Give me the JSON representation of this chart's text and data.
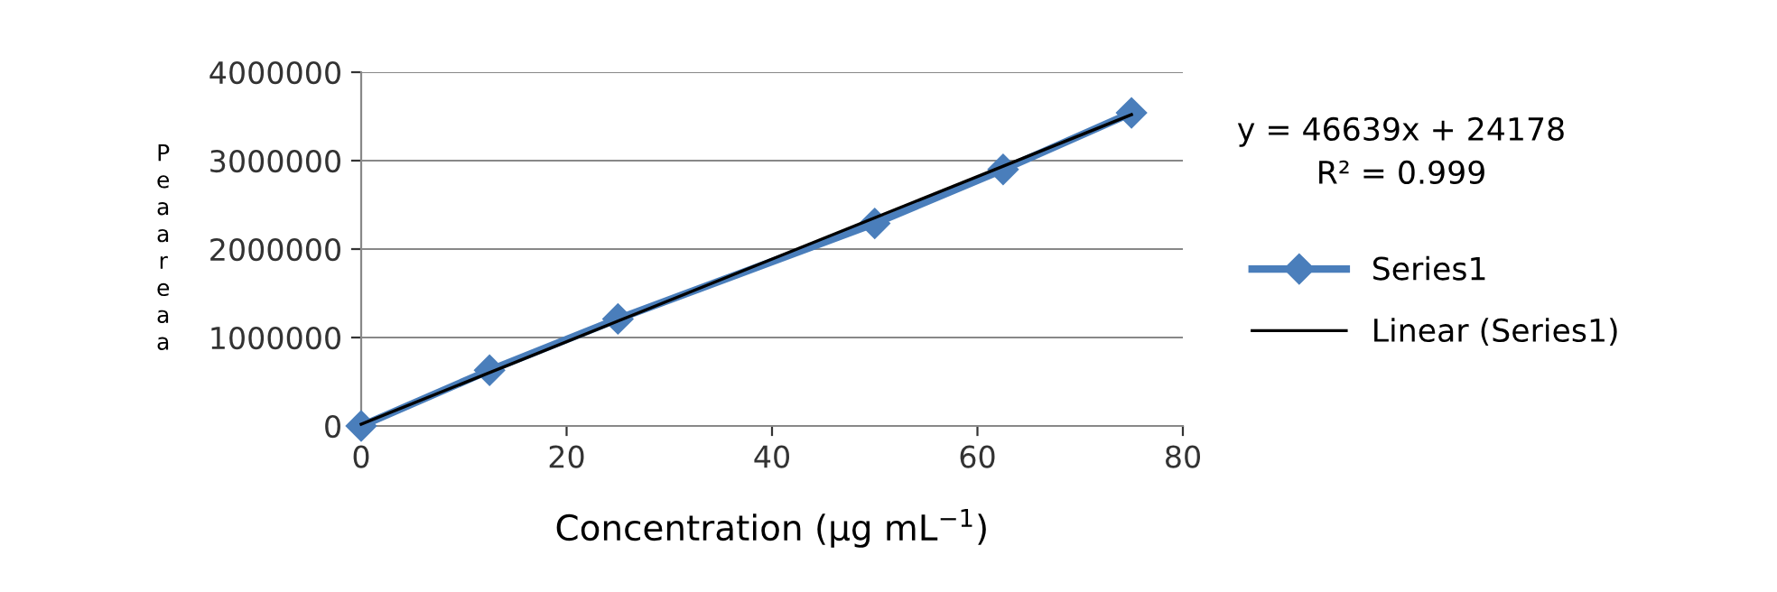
{
  "chart_data": {
    "type": "line",
    "xlabel": "Concentration (µg mL$^{−1}$)",
    "ylabel": "Peaareaa",
    "x": [
      0,
      12.5,
      25,
      50,
      62.5,
      75
    ],
    "series": [
      {
        "name": "Series1",
        "color": "#4a7ebb",
        "values": [
          0,
          630000,
          1210000,
          2290000,
          2900000,
          3540000
        ],
        "marker": "diamond"
      },
      {
        "name": "Linear (Series1)",
        "color": "#000000",
        "x": [
          0,
          75
        ],
        "values": [
          20000,
          3520000
        ],
        "marker": "none"
      }
    ],
    "annotations": [
      "y = 46639x + 24178",
      "R² = 0.999"
    ],
    "xlim": [
      0,
      80
    ],
    "xticks": [
      0,
      20,
      40,
      60,
      80
    ],
    "ylim": [
      0,
      4000000
    ],
    "yticks": [
      0,
      1000000,
      2000000,
      3000000,
      4000000
    ],
    "grid": "y",
    "legend": "right"
  }
}
